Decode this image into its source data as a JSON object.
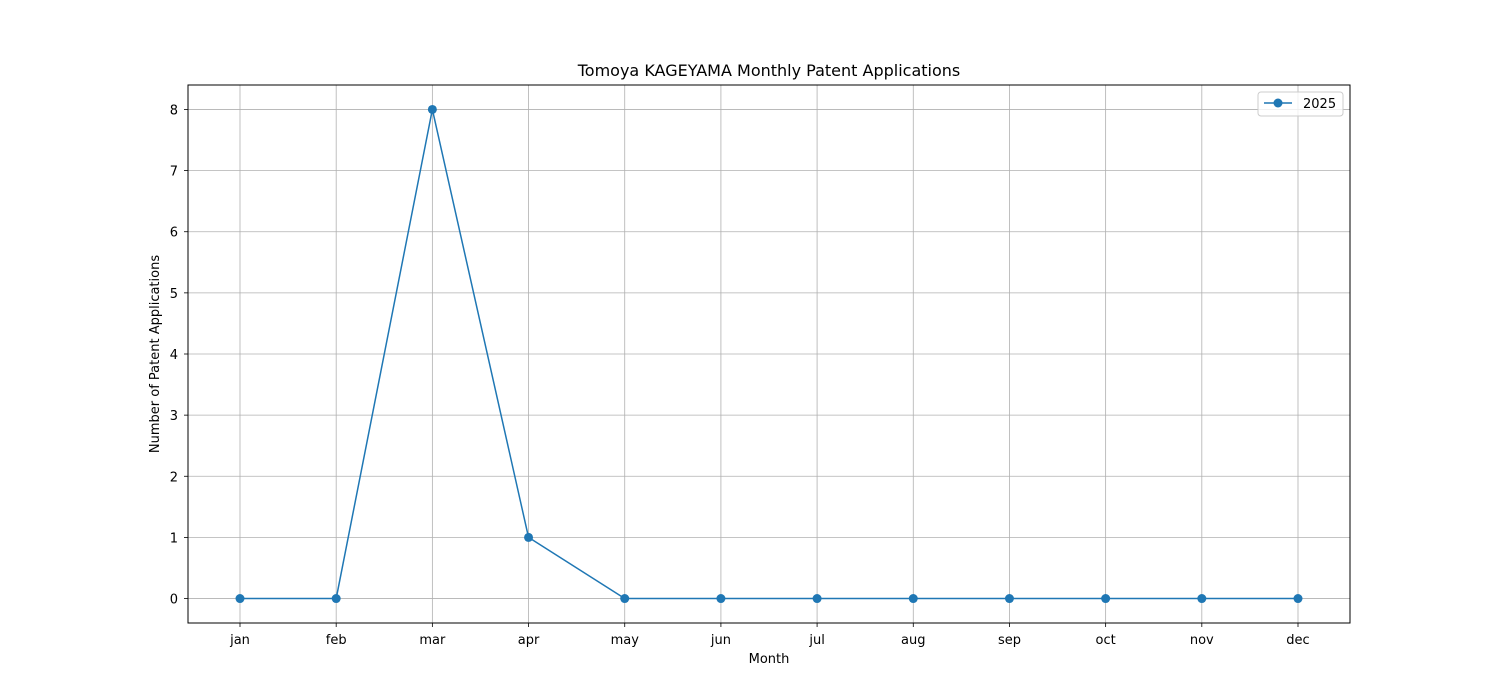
{
  "chart_data": {
    "type": "line",
    "title": "Tomoya KAGEYAMA Monthly Patent Applications",
    "xlabel": "Month",
    "ylabel": "Number of Patent Applications",
    "categories": [
      "jan",
      "feb",
      "mar",
      "apr",
      "may",
      "jun",
      "jul",
      "aug",
      "sep",
      "oct",
      "nov",
      "dec"
    ],
    "series": [
      {
        "name": "2025",
        "values": [
          0,
          0,
          8,
          1,
          0,
          0,
          0,
          0,
          0,
          0,
          0,
          0
        ],
        "color": "#1f77b4",
        "marker": "circle"
      }
    ],
    "ylim": [
      -0.4,
      8.4
    ],
    "yticks": [
      "0",
      "1",
      "2",
      "3",
      "4",
      "5",
      "6",
      "7",
      "8"
    ],
    "grid": true,
    "legend_position": "top-right"
  }
}
